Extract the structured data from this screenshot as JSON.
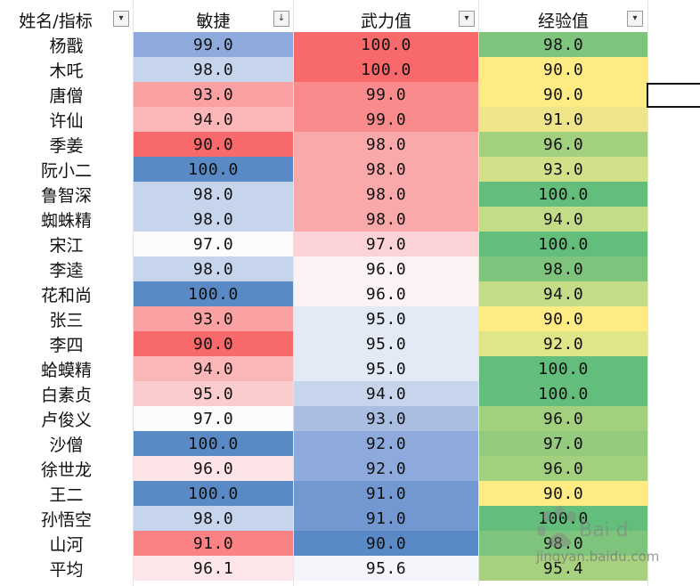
{
  "headers": {
    "name": "姓名/指标",
    "agility": "敏捷",
    "force": "武力值",
    "exp": "经验值"
  },
  "filter_icons": {
    "name": "▾",
    "agility": "↓",
    "force": "▾",
    "exp": "▾"
  },
  "rows": [
    {
      "name": "杨戬",
      "agility": "99.0",
      "force": "100.0",
      "exp": "98.0",
      "agility_color": "#8EA9DB",
      "force_color": "#F8696B",
      "exp_color": "#7FC47D"
    },
    {
      "name": "木吒",
      "agility": "98.0",
      "force": "100.0",
      "exp": "90.0",
      "agility_color": "#C6D4EC",
      "force_color": "#F8696B",
      "exp_color": "#FFEB84"
    },
    {
      "name": "唐僧",
      "agility": "93.0",
      "force": "99.0",
      "exp": "90.0",
      "agility_color": "#FAA1A3",
      "force_color": "#F98B8D",
      "exp_color": "#FFEB84"
    },
    {
      "name": "许仙",
      "agility": "94.0",
      "force": "99.0",
      "exp": "91.0",
      "agility_color": "#FBB6B8",
      "force_color": "#F98B8D",
      "exp_color": "#EEE58A"
    },
    {
      "name": "季姜",
      "agility": "90.0",
      "force": "98.0",
      "exp": "96.0",
      "agility_color": "#F8696B",
      "force_color": "#FAA9AB",
      "exp_color": "#A3D07F"
    },
    {
      "name": "阮小二",
      "agility": "100.0",
      "force": "98.0",
      "exp": "93.0",
      "agility_color": "#5A8AC6",
      "force_color": "#FAA9AB",
      "exp_color": "#D2E08A"
    },
    {
      "name": "鲁智深",
      "agility": "98.0",
      "force": "98.0",
      "exp": "100.0",
      "agility_color": "#C6D4EC",
      "force_color": "#FAA9AB",
      "exp_color": "#63BE7B"
    },
    {
      "name": "蜘蛛精",
      "agility": "98.0",
      "force": "98.0",
      "exp": "94.0",
      "agility_color": "#C6D4EC",
      "force_color": "#FAA9AB",
      "exp_color": "#C3DC88"
    },
    {
      "name": "宋江",
      "agility": "97.0",
      "force": "97.0",
      "exp": "100.0",
      "agility_color": "#FCFCFF",
      "force_color": "#FBD3D6",
      "exp_color": "#63BE7B"
    },
    {
      "name": "李逵",
      "agility": "98.0",
      "force": "96.0",
      "exp": "98.0",
      "agility_color": "#C6D4EC",
      "force_color": "#FCF2F4",
      "exp_color": "#7FC47D"
    },
    {
      "name": "花和尚",
      "agility": "100.0",
      "force": "96.0",
      "exp": "94.0",
      "agility_color": "#5A8AC6",
      "force_color": "#FCF2F4",
      "exp_color": "#C3DC88"
    },
    {
      "name": "张三",
      "agility": "93.0",
      "force": "95.0",
      "exp": "90.0",
      "agility_color": "#FAA1A3",
      "force_color": "#E4EAF5",
      "exp_color": "#FFEB84"
    },
    {
      "name": "李四",
      "agility": "90.0",
      "force": "95.0",
      "exp": "92.0",
      "agility_color": "#F8696B",
      "force_color": "#E4EAF5",
      "exp_color": "#E1E58A"
    },
    {
      "name": "蛤蟆精",
      "agility": "94.0",
      "force": "95.0",
      "exp": "100.0",
      "agility_color": "#FBB6B8",
      "force_color": "#E4EAF5",
      "exp_color": "#63BE7B"
    },
    {
      "name": "白素贞",
      "agility": "95.0",
      "force": "94.0",
      "exp": "100.0",
      "agility_color": "#FBCCCE",
      "force_color": "#C6D4EC",
      "exp_color": "#63BE7B"
    },
    {
      "name": "卢俊义",
      "agility": "97.0",
      "force": "93.0",
      "exp": "96.0",
      "agility_color": "#FCFCFF",
      "force_color": "#A9BEE1",
      "exp_color": "#A3D07F"
    },
    {
      "name": "沙僧",
      "agility": "100.0",
      "force": "92.0",
      "exp": "97.0",
      "agility_color": "#5A8AC6",
      "force_color": "#8EA9DB",
      "exp_color": "#93CA7E"
    },
    {
      "name": "徐世龙",
      "agility": "96.0",
      "force": "92.0",
      "exp": "96.0",
      "agility_color": "#FCE4E7",
      "force_color": "#8EA9DB",
      "exp_color": "#A3D07F"
    },
    {
      "name": "王二",
      "agility": "100.0",
      "force": "91.0",
      "exp": "90.0",
      "agility_color": "#5A8AC6",
      "force_color": "#7397D0",
      "exp_color": "#FFEB84"
    },
    {
      "name": "孙悟空",
      "agility": "98.0",
      "force": "91.0",
      "exp": "100.0",
      "agility_color": "#C6D4EC",
      "force_color": "#7397D0",
      "exp_color": "#63BE7B"
    },
    {
      "name": "山河",
      "agility": "91.0",
      "force": "90.0",
      "exp": "98.0",
      "agility_color": "#F98284",
      "force_color": "#5A8AC6",
      "exp_color": "#7FC47D"
    },
    {
      "name": "平均",
      "agility": "96.1",
      "force": "95.6",
      "exp": "95.4",
      "agility_color": "#FCE6E9",
      "force_color": "#F4F6FB",
      "exp_color": "#A8D17F"
    }
  ],
  "watermark": {
    "brand": "Bai du 经验",
    "url": "jingyan.baidu.com"
  }
}
